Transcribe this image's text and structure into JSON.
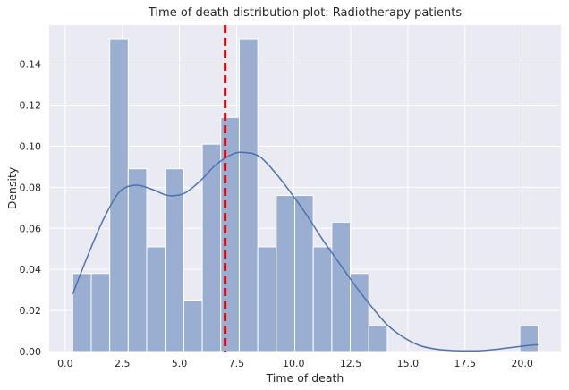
{
  "chart_data": {
    "type": "bar",
    "title": "Time of death distribution plot: Radiotherapy patients",
    "xlabel": "Time of death",
    "ylabel": "Density",
    "xlim": [
      -0.7,
      21.7
    ],
    "ylim": [
      0,
      0.159
    ],
    "xticks": [
      0.0,
      2.5,
      5.0,
      7.5,
      10.0,
      12.5,
      15.0,
      17.5,
      20.0
    ],
    "xtick_labels": [
      "0.0",
      "2.5",
      "5.0",
      "7.5",
      "10.0",
      "12.5",
      "15.0",
      "17.5",
      "20.0"
    ],
    "yticks": [
      0.0,
      0.02,
      0.04,
      0.06,
      0.08,
      0.1,
      0.12,
      0.14
    ],
    "ytick_labels": [
      "0.00",
      "0.02",
      "0.04",
      "0.06",
      "0.08",
      "0.10",
      "0.12",
      "0.14"
    ],
    "grid": true,
    "bars": [
      {
        "x0": 0.33,
        "x1": 1.14,
        "y": 0.038
      },
      {
        "x0": 1.14,
        "x1": 1.95,
        "y": 0.038
      },
      {
        "x0": 1.95,
        "x1": 2.76,
        "y": 0.152
      },
      {
        "x0": 2.76,
        "x1": 3.57,
        "y": 0.089
      },
      {
        "x0": 3.57,
        "x1": 4.38,
        "y": 0.051
      },
      {
        "x0": 4.38,
        "x1": 5.19,
        "y": 0.089
      },
      {
        "x0": 5.19,
        "x1": 6.0,
        "y": 0.025
      },
      {
        "x0": 6.0,
        "x1": 6.81,
        "y": 0.101
      },
      {
        "x0": 6.81,
        "x1": 7.62,
        "y": 0.114
      },
      {
        "x0": 7.62,
        "x1": 8.43,
        "y": 0.152
      },
      {
        "x0": 8.43,
        "x1": 9.24,
        "y": 0.051
      },
      {
        "x0": 9.24,
        "x1": 10.05,
        "y": 0.076
      },
      {
        "x0": 10.05,
        "x1": 10.86,
        "y": 0.076
      },
      {
        "x0": 10.86,
        "x1": 11.67,
        "y": 0.051
      },
      {
        "x0": 11.67,
        "x1": 12.48,
        "y": 0.063
      },
      {
        "x0": 12.48,
        "x1": 13.29,
        "y": 0.038
      },
      {
        "x0": 13.29,
        "x1": 14.1,
        "y": 0.0125
      },
      {
        "x0": 19.9,
        "x1": 20.7,
        "y": 0.0125
      }
    ],
    "kde": {
      "x": [
        0.33,
        1.0,
        1.7,
        2.4,
        3.1,
        3.8,
        4.5,
        5.2,
        5.9,
        6.6,
        7.3,
        7.8,
        8.5,
        9.2,
        9.9,
        10.6,
        11.3,
        12.0,
        12.7,
        13.4,
        14.1,
        14.8,
        15.5,
        16.2,
        16.9,
        17.6,
        18.3,
        19.0,
        19.7,
        20.4,
        20.7
      ],
      "y": [
        0.028,
        0.047,
        0.065,
        0.078,
        0.081,
        0.079,
        0.076,
        0.077,
        0.083,
        0.091,
        0.096,
        0.097,
        0.095,
        0.087,
        0.077,
        0.066,
        0.054,
        0.043,
        0.032,
        0.022,
        0.013,
        0.007,
        0.003,
        0.0012,
        0.0005,
        0.0003,
        0.0005,
        0.0012,
        0.0022,
        0.0031,
        0.0033
      ]
    },
    "vline": {
      "x": 7.0
    },
    "colors": {
      "background": "#eaeaf2",
      "grid": "#ffffff",
      "bar_fill": "#9aaed1",
      "bar_edge": "#ffffff",
      "kde": "#4c72b0",
      "vline": "#e8000b"
    }
  }
}
